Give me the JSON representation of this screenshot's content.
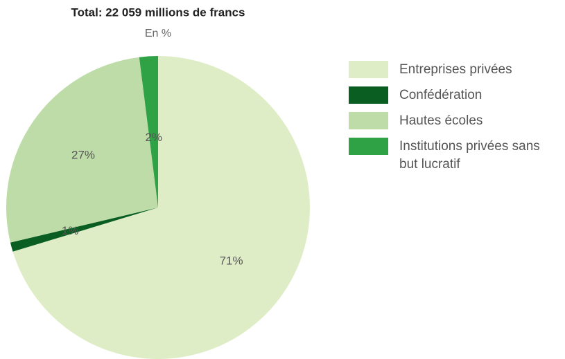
{
  "chart_data": {
    "type": "pie",
    "title": "Total: 22 059 millions de francs",
    "subtitle": "En %",
    "categories": [
      "Entreprises privées",
      "Confédération",
      "Hautes écoles",
      "Institutions privées sans but lucratif"
    ],
    "values": [
      71,
      1,
      27,
      2
    ],
    "value_labels": [
      "71%",
      "1%",
      "27%",
      "2%"
    ],
    "colors": [
      "#dfedc6",
      "#0b5e22",
      "#bddca8",
      "#2fa246"
    ],
    "legend": "right"
  }
}
